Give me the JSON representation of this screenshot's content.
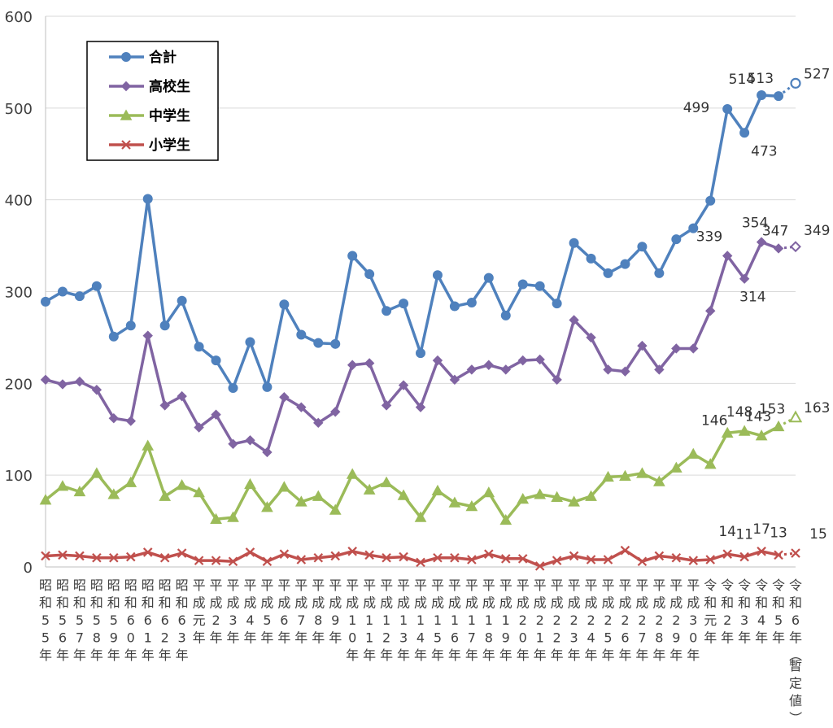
{
  "chart_data": {
    "type": "line",
    "title": "",
    "xlabel": "",
    "ylabel": "",
    "ylim": [
      0,
      600
    ],
    "yticks": [
      0,
      100,
      200,
      300,
      400,
      500,
      600
    ],
    "grid": true,
    "legend_position": "top-left",
    "categories": [
      "昭和55年",
      "昭和56年",
      "昭和57年",
      "昭和58年",
      "昭和59年",
      "昭和60年",
      "昭和61年",
      "昭和62年",
      "昭和63年",
      "平成元年",
      "平成2年",
      "平成3年",
      "平成4年",
      "平成5年",
      "平成6年",
      "平成7年",
      "平成8年",
      "平成9年",
      "平成10年",
      "平成11年",
      "平成12年",
      "平成13年",
      "平成14年",
      "平成15年",
      "平成16年",
      "平成17年",
      "平成18年",
      "平成19年",
      "平成20年",
      "平成21年",
      "平成22年",
      "平成23年",
      "平成24年",
      "平成25年",
      "平成26年",
      "平成27年",
      "平成28年",
      "平成29年",
      "平成30年",
      "令和元年",
      "令和2年",
      "令和3年",
      "令和4年",
      "令和5年",
      "令和6年（暫定値）"
    ],
    "series": [
      {
        "name": "合計",
        "color": "#4F81BD",
        "marker": "circle",
        "values": [
          289,
          300,
          295,
          306,
          251,
          263,
          401,
          263,
          290,
          240,
          225,
          195,
          245,
          196,
          286,
          253,
          244,
          243,
          339,
          319,
          279,
          287,
          233,
          318,
          284,
          288,
          315,
          274,
          308,
          306,
          287,
          353,
          336,
          320,
          330,
          349,
          320,
          357,
          369,
          399,
          499,
          473,
          514,
          513,
          527
        ],
        "labels": {
          "40": "499",
          "41": "473",
          "42": "514",
          "43": "513",
          "44": "527"
        }
      },
      {
        "name": "高校生",
        "color": "#8064A2",
        "marker": "diamond",
        "values": [
          204,
          199,
          202,
          193,
          162,
          159,
          252,
          176,
          186,
          152,
          166,
          134,
          138,
          125,
          185,
          174,
          157,
          169,
          220,
          222,
          176,
          198,
          174,
          225,
          204,
          215,
          220,
          215,
          225,
          226,
          204,
          269,
          250,
          215,
          213,
          241,
          215,
          238,
          238,
          279,
          339,
          314,
          354,
          347,
          349
        ],
        "labels": {
          "40": "339",
          "41": "314",
          "42": "354",
          "43": "347",
          "44": "349"
        }
      },
      {
        "name": "中学生",
        "color": "#9BBB59",
        "marker": "triangle",
        "values": [
          73,
          88,
          82,
          102,
          79,
          92,
          132,
          77,
          89,
          81,
          52,
          54,
          90,
          65,
          87,
          71,
          77,
          62,
          101,
          84,
          92,
          78,
          54,
          83,
          70,
          66,
          81,
          51,
          74,
          79,
          76,
          71,
          77,
          98,
          99,
          102,
          93,
          108,
          123,
          112,
          146,
          148,
          143,
          153,
          163
        ],
        "labels": {
          "40": "146",
          "41": "148",
          "42": "143",
          "43": "153",
          "44": "163"
        }
      },
      {
        "name": "小学生",
        "color": "#C0504D",
        "marker": "cross",
        "values": [
          12,
          13,
          12,
          10,
          10,
          11,
          16,
          10,
          15,
          7,
          7,
          6,
          16,
          6,
          14,
          8,
          10,
          12,
          17,
          13,
          10,
          11,
          5,
          10,
          10,
          8,
          14,
          9,
          9,
          1,
          7,
          12,
          8,
          8,
          18,
          6,
          12,
          10,
          7,
          8,
          14,
          11,
          17,
          13,
          15
        ],
        "labels": {
          "40": "14",
          "41": "11",
          "42": "17",
          "43": "13",
          "44": "15"
        }
      }
    ]
  }
}
